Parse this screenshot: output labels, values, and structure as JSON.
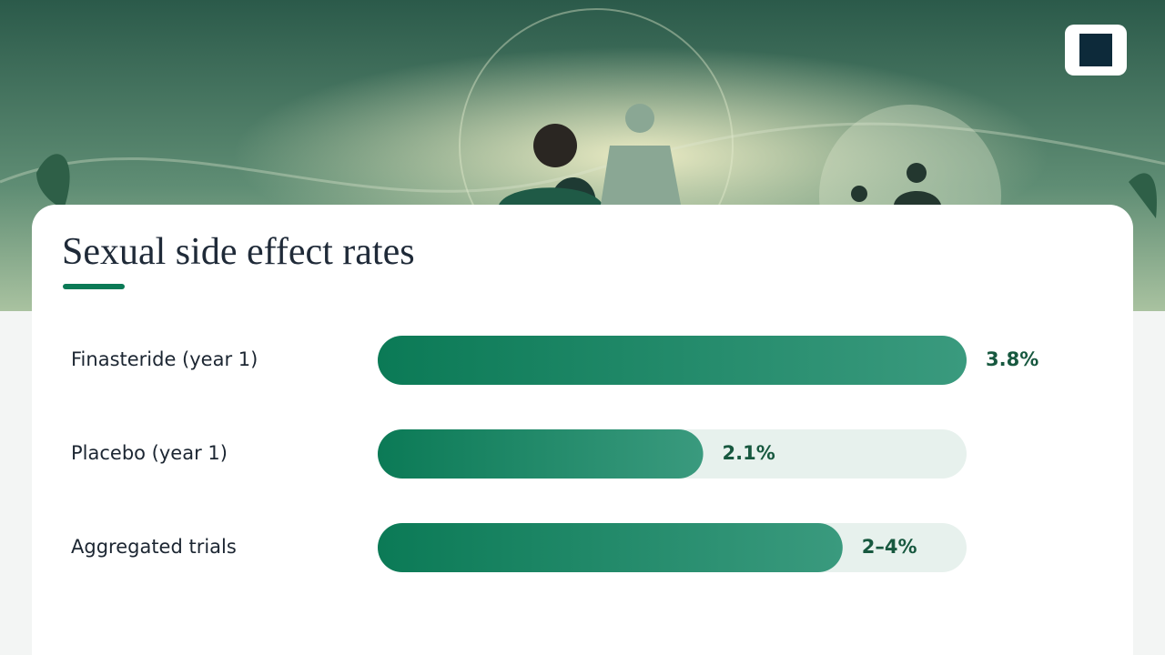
{
  "chart_data": {
    "type": "bar",
    "orientation": "horizontal",
    "title": "Sexual side effect rates",
    "categories": [
      "Finasteride (year 1)",
      "Placebo (year 1)",
      "Aggregated trials"
    ],
    "values": [
      3.8,
      2.1,
      3
    ],
    "value_labels": [
      "3.8%",
      "2.1%",
      "2–4%"
    ],
    "color": "#0b7a56",
    "color_end": "#3a9a7e",
    "track_color": "#e7f1ed",
    "xlim": [
      0,
      3.8
    ]
  }
}
